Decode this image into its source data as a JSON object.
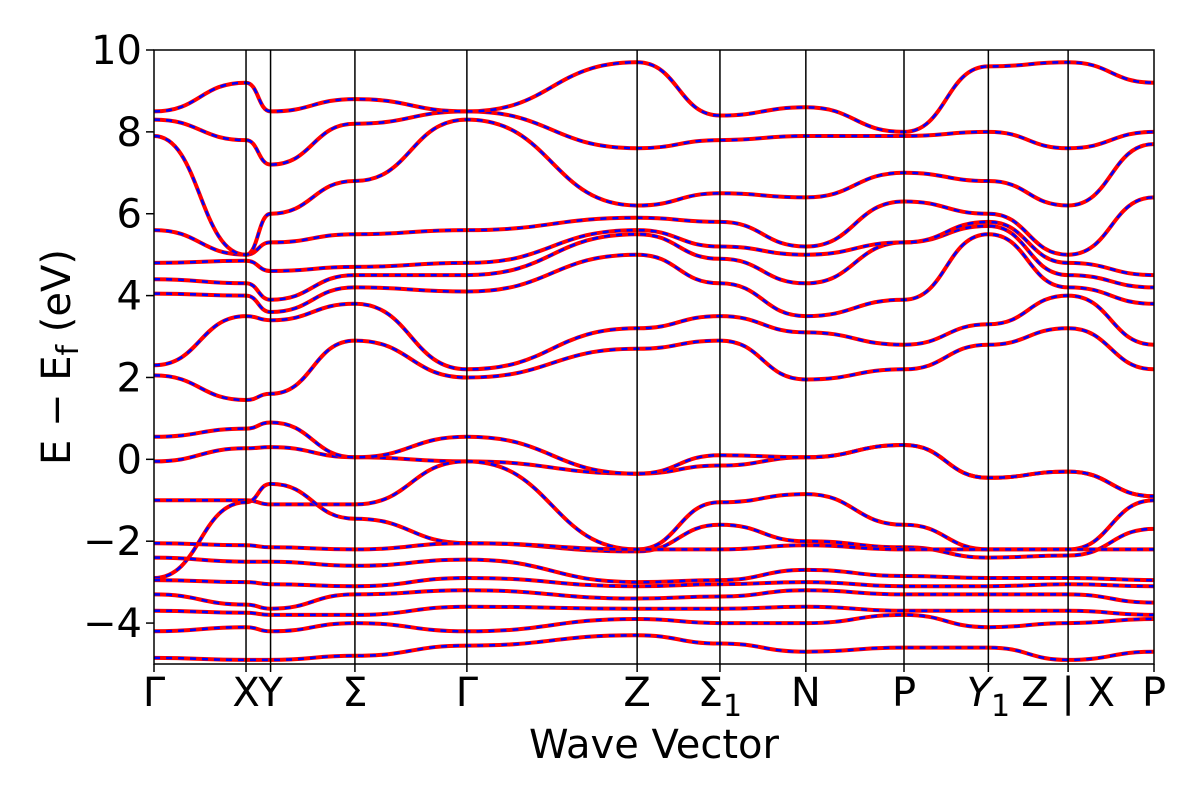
{
  "chart_data": {
    "type": "line",
    "title": "",
    "xlabel": "Wave Vector",
    "ylabel": "E − E_f (eV)",
    "ylabel_parts": {
      "main": "E − E",
      "sub": "f",
      "unit": " (eV)"
    },
    "ylim": [
      -5,
      10
    ],
    "yticks": [
      -4,
      -2,
      0,
      2,
      4,
      6,
      8,
      10
    ],
    "ytick_labels": [
      "−4",
      "−2",
      "0",
      "2",
      "4",
      "6",
      "8",
      "10"
    ],
    "kpath_segments": [
      {
        "from": "Γ",
        "to": "X",
        "x_range": [
          0,
          0.6
        ]
      },
      {
        "from": "X",
        "to": "Y",
        "x_range": [
          0.6,
          0.76
        ]
      },
      {
        "from": "Y",
        "to": "Σ",
        "x_range": [
          0.76,
          1.31
        ]
      },
      {
        "from": "Σ",
        "to": "Γ",
        "x_range": [
          1.31,
          2.04
        ]
      },
      {
        "from": "Γ",
        "to": "Z",
        "x_range": [
          2.04,
          3.15
        ]
      },
      {
        "from": "Z",
        "to": "Σ₁",
        "x_range": [
          3.15,
          3.69
        ]
      },
      {
        "from": "Σ₁",
        "to": "N",
        "x_range": [
          3.69,
          4.25
        ]
      },
      {
        "from": "N",
        "to": "P",
        "x_range": [
          4.25,
          4.89
        ]
      },
      {
        "from": "P",
        "to": "Y₁",
        "x_range": [
          4.89,
          5.44
        ]
      },
      {
        "from": "Y₁",
        "to": "Z",
        "x_range": [
          5.44,
          5.96
        ]
      },
      {
        "from": "X",
        "to": "P",
        "x_range": [
          5.96,
          6.52
        ]
      }
    ],
    "xlim": [
      0,
      6.52
    ],
    "xticks": [
      {
        "x": 0.0,
        "label": "Γ"
      },
      {
        "x": 0.6,
        "label": "X"
      },
      {
        "x": 0.76,
        "label": "Y"
      },
      {
        "x": 1.31,
        "label": "Σ"
      },
      {
        "x": 2.04,
        "label": "Γ"
      },
      {
        "x": 3.15,
        "label": "Z"
      },
      {
        "x": 3.69,
        "label": "Σ",
        "subscript": "1"
      },
      {
        "x": 4.25,
        "label": "N"
      },
      {
        "x": 4.89,
        "label": "P"
      },
      {
        "x": 5.44,
        "label": "Y",
        "subscript": "1",
        "italic": true
      },
      {
        "x": 5.96,
        "label": "Z | X"
      },
      {
        "x": 6.52,
        "label": "P"
      }
    ],
    "vertical_lines_x": [
      0.6,
      0.76,
      1.31,
      2.04,
      3.15,
      3.69,
      4.25,
      4.89,
      5.44,
      5.96
    ],
    "series": [
      {
        "style": "red solid overlaid with blue dashed",
        "values_note": "approximate band energies (eV) at each high-symmetry point"
      }
    ],
    "bands": [
      [
        -0.05,
        0.27,
        0.3,
        0.05,
        -0.05,
        -0.35,
        -0.15,
        0.05,
        0.35,
        -0.45,
        -0.3,
        -0.9
      ],
      [
        0.55,
        0.75,
        0.9,
        0.05,
        0.55,
        -0.35,
        0.1,
        0.05,
        0.35,
        -0.45,
        -0.3,
        -0.9
      ],
      [
        2.05,
        1.45,
        1.6,
        2.9,
        2.0,
        2.7,
        2.9,
        1.95,
        2.2,
        2.8,
        3.2,
        2.2
      ],
      [
        2.3,
        3.5,
        3.4,
        3.8,
        2.2,
        3.2,
        3.5,
        3.1,
        2.8,
        3.3,
        4.0,
        2.8
      ],
      [
        4.05,
        4.0,
        3.6,
        4.2,
        4.1,
        5.0,
        4.3,
        3.5,
        3.9,
        5.5,
        4.2,
        3.8
      ],
      [
        4.4,
        4.3,
        3.9,
        4.5,
        4.5,
        5.5,
        4.9,
        4.3,
        5.3,
        5.7,
        4.5,
        4.2
      ],
      [
        4.8,
        4.85,
        4.6,
        4.7,
        4.8,
        5.6,
        5.2,
        5.0,
        5.3,
        5.8,
        4.8,
        4.5
      ],
      [
        5.6,
        5.0,
        5.3,
        5.5,
        5.6,
        5.9,
        5.8,
        5.2,
        6.3,
        6.0,
        5.0,
        6.4
      ],
      [
        7.9,
        5.0,
        6.0,
        6.8,
        8.3,
        6.2,
        6.5,
        6.4,
        7.0,
        6.8,
        6.2,
        7.7
      ],
      [
        8.3,
        7.8,
        7.2,
        8.2,
        8.5,
        7.6,
        7.8,
        7.9,
        7.9,
        8.0,
        7.6,
        8.0
      ],
      [
        8.5,
        9.2,
        8.5,
        8.8,
        8.5,
        9.7,
        8.4,
        8.6,
        8.0,
        9.6,
        9.7,
        9.2
      ],
      [
        -1.0,
        -1.0,
        -1.1,
        -1.1,
        -0.05,
        -2.2,
        -1.05,
        -0.85,
        -1.6,
        -2.2,
        -2.2,
        -1.0
      ],
      [
        -2.9,
        -1.05,
        -0.6,
        -1.45,
        -2.05,
        -2.25,
        -1.6,
        -2.0,
        -2.15,
        -2.4,
        -2.35,
        -1.7
      ],
      [
        -2.05,
        -2.1,
        -2.15,
        -2.2,
        -2.05,
        -2.2,
        -2.2,
        -2.1,
        -2.2,
        -2.2,
        -2.2,
        -2.2
      ],
      [
        -2.4,
        -2.5,
        -2.5,
        -2.6,
        -2.45,
        -3.0,
        -2.95,
        -2.7,
        -2.85,
        -2.9,
        -2.9,
        -2.95
      ],
      [
        -2.95,
        -3.0,
        -3.05,
        -3.1,
        -2.9,
        -3.1,
        -3.05,
        -3.0,
        -3.1,
        -3.1,
        -3.05,
        -3.1
      ],
      [
        -3.3,
        -3.55,
        -3.65,
        -3.3,
        -3.2,
        -3.4,
        -3.35,
        -3.2,
        -3.3,
        -3.3,
        -3.3,
        -3.5
      ],
      [
        -3.7,
        -3.75,
        -3.8,
        -3.8,
        -3.6,
        -3.65,
        -3.65,
        -3.6,
        -3.7,
        -3.7,
        -3.7,
        -3.8
      ],
      [
        -4.2,
        -4.1,
        -4.2,
        -4.0,
        -4.2,
        -3.9,
        -4.0,
        -4.0,
        -3.8,
        -4.1,
        -4.0,
        -3.9
      ],
      [
        -4.85,
        -4.9,
        -4.9,
        -4.8,
        -4.55,
        -4.3,
        -4.5,
        -4.7,
        -4.6,
        -4.6,
        -4.9,
        -4.7
      ]
    ],
    "colors": {
      "solid": "#ff0000",
      "dashed": "#0000ff",
      "axes": "#000000"
    },
    "grid": false,
    "legend": "none"
  }
}
